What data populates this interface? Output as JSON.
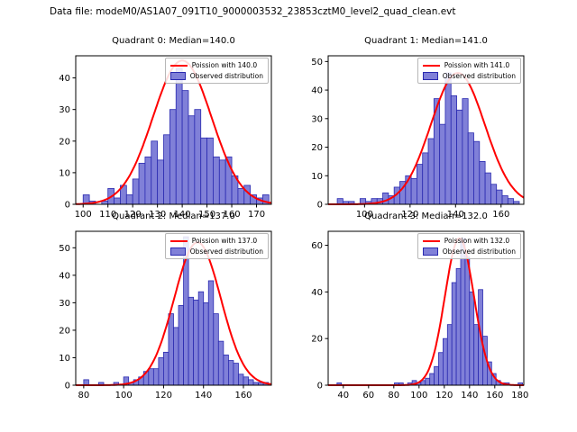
{
  "figure_title": "Data file: modeM0/AS1A07_091T10_9000003532_23853cztM0_level2_quad_clean.evt",
  "colors": {
    "bar_fill": "#8080d8",
    "bar_edge": "#2a2ab0",
    "curve": "#ff0000",
    "axis": "#000000",
    "background": "#ffffff"
  },
  "chart_data": [
    {
      "type": "bar",
      "title": "Quadrant 0: Median=140.0",
      "legend": [
        "Poission with 140.0",
        "Observed distribution"
      ],
      "xlabel": "",
      "ylabel": "",
      "xlim": [
        97,
        176
      ],
      "ylim": [
        0,
        47
      ],
      "xticks": [
        100,
        110,
        120,
        130,
        140,
        150,
        160,
        170
      ],
      "yticks": [
        0,
        10,
        20,
        30,
        40
      ],
      "bin_start": 100,
      "bin_width": 2.5,
      "counts": [
        3,
        1,
        0,
        1,
        5,
        2,
        6,
        3,
        8,
        13,
        15,
        20,
        14,
        22,
        30,
        43,
        36,
        28,
        30,
        21,
        21,
        15,
        14,
        15,
        9,
        5,
        6,
        3,
        2,
        3
      ],
      "poisson": {
        "lambda": 140.0,
        "peak": 45.5
      },
      "legend_position": "upper right",
      "grid": false
    },
    {
      "type": "bar",
      "title": "Quadrant 1: Median=141.0",
      "legend": [
        "Poission with 141.0",
        "Observed distribution"
      ],
      "xlabel": "",
      "ylabel": "",
      "xlim": [
        84,
        170
      ],
      "ylim": [
        0,
        52
      ],
      "xticks": [
        100,
        120,
        140,
        160
      ],
      "yticks": [
        0,
        10,
        20,
        30,
        40,
        50
      ],
      "bin_start": 88,
      "bin_width": 2.5,
      "counts": [
        2,
        1,
        1,
        0,
        2,
        1,
        2,
        2,
        4,
        3,
        6,
        8,
        10,
        9,
        14,
        18,
        23,
        37,
        28,
        46,
        38,
        33,
        37,
        25,
        22,
        15,
        11,
        7,
        5,
        3,
        2,
        1
      ],
      "poisson": {
        "lambda": 141.0,
        "peak": 46.0
      },
      "legend_position": "upper right",
      "grid": false
    },
    {
      "type": "bar",
      "title": "Quadrant 2: Median=137.0",
      "legend": [
        "Poission with 137.0",
        "Observed distribution"
      ],
      "xlabel": "",
      "ylabel": "",
      "xlim": [
        76,
        174
      ],
      "ylim": [
        0,
        56
      ],
      "xticks": [
        80,
        100,
        120,
        140,
        160
      ],
      "yticks": [
        0,
        10,
        20,
        30,
        40,
        50
      ],
      "bin_start": 80,
      "bin_width": 2.5,
      "counts": [
        2,
        0,
        0,
        1,
        0,
        0,
        1,
        0,
        3,
        1,
        2,
        3,
        5,
        6,
        6,
        10,
        12,
        26,
        21,
        29,
        54,
        32,
        31,
        34,
        30,
        38,
        26,
        16,
        11,
        9,
        8,
        4,
        3,
        2,
        1,
        1,
        1
      ],
      "poisson": {
        "lambda": 137.0,
        "peak": 52.0
      },
      "legend_position": "upper right",
      "grid": false
    },
    {
      "type": "bar",
      "title": "Quadrant 3: Median=132.0",
      "legend": [
        "Poission with 132.0",
        "Observed distribution"
      ],
      "xlabel": "",
      "ylabel": "",
      "xlim": [
        28,
        183
      ],
      "ylim": [
        0,
        66
      ],
      "xticks": [
        40,
        60,
        80,
        100,
        120,
        140,
        160,
        180
      ],
      "yticks": [
        0,
        20,
        40,
        60
      ],
      "bin_start": 35,
      "bin_width": 3.5,
      "counts": [
        1,
        0,
        0,
        0,
        0,
        0,
        0,
        0,
        0,
        0,
        0,
        0,
        0,
        1,
        1,
        0,
        1,
        2,
        1,
        2,
        3,
        5,
        8,
        14,
        20,
        26,
        44,
        50,
        63,
        55,
        40,
        26,
        41,
        21,
        10,
        5,
        2,
        1,
        1,
        0,
        0,
        1
      ],
      "poisson": {
        "lambda": 132.0,
        "peak": 63.0
      },
      "legend_position": "upper right",
      "grid": false
    }
  ]
}
